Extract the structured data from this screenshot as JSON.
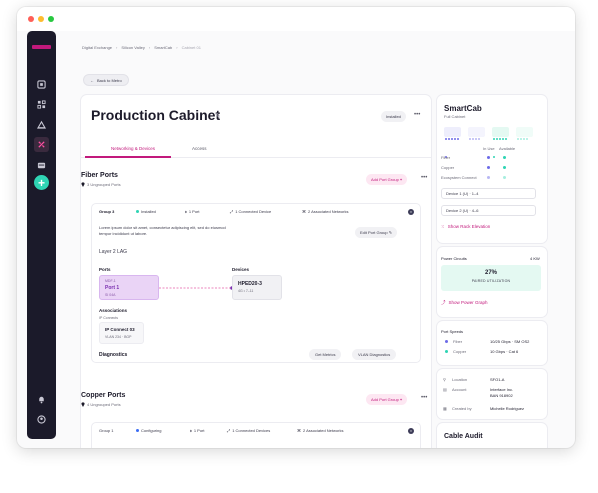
{
  "window": {
    "controls": [
      "close",
      "minimize",
      "zoom"
    ],
    "colors": {
      "close": "#ff5f57",
      "minimize": "#febc2e",
      "zoom": "#28c840"
    }
  },
  "rail": {
    "icons": [
      "layout-icon",
      "grid-icon",
      "sites-icon",
      "cabinet-icon",
      "devices-icon",
      "add-icon",
      "bell-icon",
      "user-icon"
    ]
  },
  "breadcrumb": {
    "items": [
      "Digital Exchange",
      "Silicon Valley",
      "SmartCab",
      "Cabinet 01"
    ]
  },
  "back_label": "Back to Metro",
  "cabinet": {
    "title": "Production Cabinet",
    "status": "Installed",
    "tabs": [
      "Networking & Devices",
      "Access"
    ]
  },
  "fiber": {
    "title": "Fiber Ports",
    "subtitle": "3 Ungrouped Ports",
    "add_label": "Add Port Group",
    "group": {
      "title": "Group 3",
      "status": "Installed",
      "ports": "1 Port",
      "devices": "1 Connected Device",
      "networks": "2 Associated Networks",
      "description": "Lorem ipsum dolor sit amet, consectetur adipiscing elit, sed do eiusmod tempor incididunt ut labore.",
      "edit_label": "Edit Port Group",
      "lag": "Layer 2 LAG",
      "ports_label": "Ports",
      "devices_label": "Devices",
      "port_tile": {
        "small": "MDF-1",
        "main": "Port 1",
        "sub": "SI 04A"
      },
      "device_tile": {
        "main": "HPED20-3",
        "sub": "4G • 7–11"
      },
      "associations_label": "Associations",
      "ip_connects_label": "IP Connects",
      "assoc": {
        "main": "IP Connect 03",
        "sub": "VLAN 234 · BGP"
      },
      "diagnostics_label": "Diagnostics",
      "get_metrics": "Get Metrics",
      "vlan_diag": "VLAN Diagnostics"
    }
  },
  "copper": {
    "title": "Copper Ports",
    "subtitle": "4 Ungrouped Ports",
    "add_label": "Add Port Group",
    "group": {
      "title": "Group 1",
      "status": "Configuring",
      "ports": "1 Port",
      "devices": "1 Connected Devices",
      "networks": "2 Associated Networks"
    }
  },
  "smartcab": {
    "title": "SmartCab",
    "subtitle": "Full Cabinet",
    "col_in_use": "In Use",
    "col_available": "Available",
    "rows": [
      "Fiber",
      "Copper",
      "Ecosystem Connect"
    ],
    "device1": "Device 1 (U) · 1–4",
    "device2": "Device 2 (U) · 4–6",
    "rack_link": "Show Rack Elevation",
    "rack_colors": [
      "#6d6be8",
      "#b8b7f3",
      "#2fd4b4",
      "#a7eedf"
    ]
  },
  "power": {
    "title": "Power Circuits",
    "value": "4 KW",
    "percent": "27%",
    "utilization_label": "PAIRED UTILIZATION",
    "link": "Show Power Graph"
  },
  "speeds": {
    "title": "Port Speeds",
    "rows": [
      {
        "label": "Fiber",
        "value": "10/25 Gbps · SM OS2"
      },
      {
        "label": "Copper",
        "value": "10 Gbps · Cat 6"
      }
    ]
  },
  "details": {
    "rows": [
      {
        "icon": "pin-icon",
        "label": "Location",
        "value": "SFO1-A"
      },
      {
        "icon": "account-icon",
        "label": "Account",
        "value": "Interface Inc.\nBAN 918902"
      },
      {
        "icon": "calendar-icon",
        "label": "Created by",
        "value": "Michelle Rodriguez"
      }
    ]
  },
  "audit": {
    "title": "Cable Audit"
  },
  "colors": {
    "accent": "#c2197c",
    "rail": "#1b1a2a",
    "teal": "#2fd4b4",
    "lavender": "#ead4f6"
  }
}
